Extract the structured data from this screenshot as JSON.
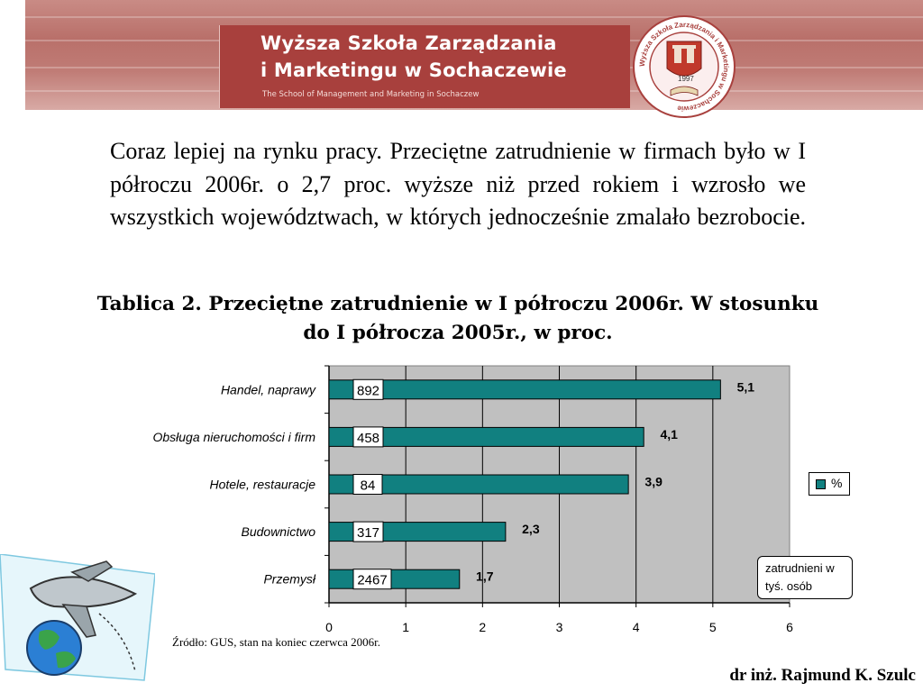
{
  "header": {
    "school_name_line1": "Wyższa Szkoła Zarządzania",
    "school_name_line2": "i Marketingu w Sochaczewie",
    "school_name_en": "The School of Management and Marketing in Sochaczew",
    "crest_text": "Wyższa Szkoła Zarządzania i Marketingu w Sochaczewie",
    "crest_year": "1997"
  },
  "intro_text": "Coraz lepiej na rynku pracy. Przeciętne zatrudnienie w firmach było w I półroczu 2006r. o 2,7 proc. wyższe niż przed rokiem i wzrosło we wszystkich województwach, w których jednocześnie zmalało bezrobocie.",
  "chart_title": "Tablica 2. Przeciętne zatrudnienie w I półroczu 2006r. W stosunku do I półrocza 2005r., w proc.",
  "chart_data": {
    "type": "bar",
    "orientation": "horizontal",
    "title": "Tablica 2. Przeciętne zatrudnienie w I półroczu 2006r. W stosunku do I półrocza 2005r., w proc.",
    "categories": [
      "Handel, naprawy",
      "Obsługa nieruchomości i firm",
      "Hotele, restauracje",
      "Budownictwo",
      "Przemysł"
    ],
    "series": [
      {
        "name": "%",
        "values": [
          5.1,
          4.1,
          3.9,
          2.3,
          1.7
        ],
        "value_labels": [
          "5,1",
          "4,1",
          "3,9",
          "2,3",
          "1,7"
        ]
      }
    ],
    "employment_labels": [
      "892",
      "458",
      "84",
      "317",
      "2467"
    ],
    "employment_legend": "zatrudnieni w tyś. osób",
    "xlim": [
      0,
      6
    ],
    "x_ticks": [
      "0",
      "1",
      "2",
      "3",
      "4",
      "5",
      "6"
    ],
    "grid": "vertical",
    "legend_placement": "right",
    "colors": {
      "bar": "#118080",
      "plot_background": "#c0c0c0"
    }
  },
  "source": "Źródło: GUS, stan na koniec czerwca 2006r.",
  "author": "dr inż. Rajmund K. Szulc"
}
